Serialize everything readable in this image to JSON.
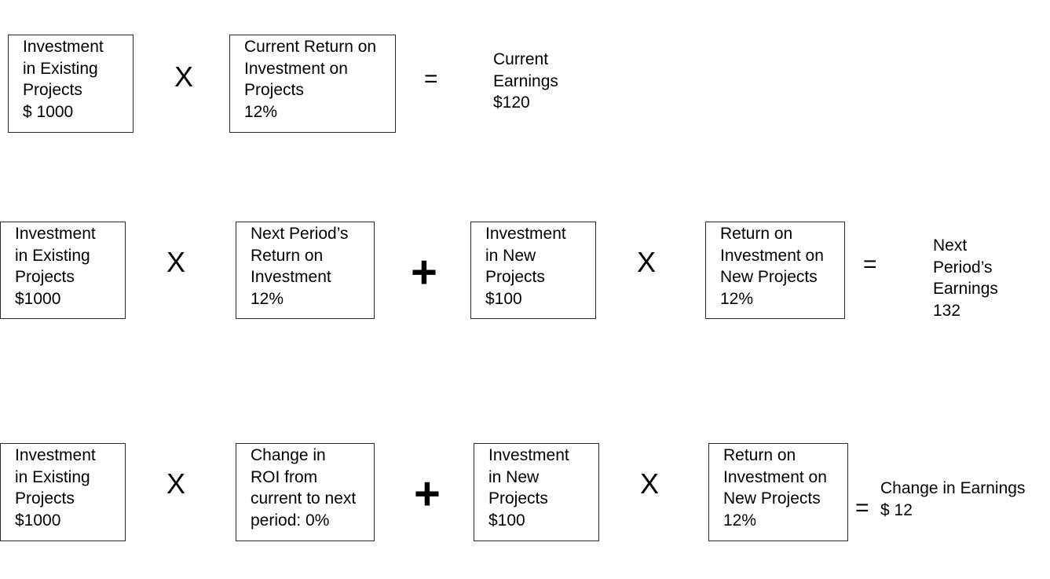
{
  "row1": {
    "box_a": [
      "Investment",
      "in Existing",
      "Projects",
      "$ 1000"
    ],
    "op1": "X",
    "box_b": [
      "Current Return on",
      "Investment on",
      "Projects",
      "12%"
    ],
    "eq": "=",
    "result": [
      "Current",
      "Earnings",
      "$120"
    ]
  },
  "row2": {
    "box_a": [
      "Investment",
      "in Existing",
      "Projects",
      "$1000"
    ],
    "op1": "X",
    "box_b": [
      "Next Period’s",
      "Return on",
      "Investment",
      "12%"
    ],
    "op2": "+",
    "box_c": [
      "Investment",
      "in New",
      "Projects",
      "$100"
    ],
    "op3": "X",
    "box_d": [
      "Return on",
      "Investment on",
      "New Projects",
      "12%"
    ],
    "eq": "=",
    "result": [
      "Next",
      "Period’s",
      "Earnings",
      "132"
    ]
  },
  "row3": {
    "box_a": [
      "Investment",
      "in Existing",
      "Projects",
      "$1000"
    ],
    "op1": "X",
    "box_b": [
      "Change in",
      "ROI from",
      "current to next",
      "period: 0%"
    ],
    "op2": "+",
    "box_c": [
      "Investment",
      "in New",
      "Projects",
      "$100"
    ],
    "op3": "X",
    "box_d": [
      "Return on",
      "Investment on",
      "New Projects",
      "12%"
    ],
    "eq": "=",
    "result": [
      "Change in Earnings",
      "$ 12"
    ]
  }
}
